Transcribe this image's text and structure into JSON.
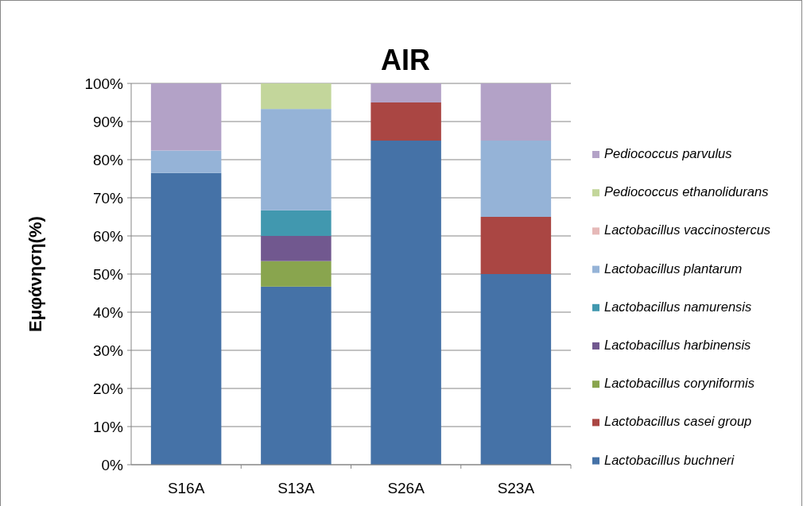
{
  "chart_data": {
    "type": "bar",
    "title": "AIR",
    "ylabel": "Εμφάνηση(%)",
    "stacked": true,
    "categories": [
      "S16A",
      "S13A",
      "S26A",
      "S23A"
    ],
    "series": [
      {
        "name": "Lactobacillus buchneri",
        "color": "#4572a7",
        "values": [
          76.5,
          46.7,
          85,
          50
        ]
      },
      {
        "name": "Lactobacillus casei group",
        "color": "#aa4643",
        "values": [
          0,
          0,
          10,
          15
        ]
      },
      {
        "name": "Lactobacillus coryniformis",
        "color": "#89a54e",
        "values": [
          0,
          6.7,
          0,
          0
        ]
      },
      {
        "name": "Lactobacillus harbinensis",
        "color": "#71588f",
        "values": [
          0,
          6.6,
          0,
          0
        ]
      },
      {
        "name": "Lactobacillus namurensis",
        "color": "#4198af",
        "values": [
          0,
          6.7,
          0,
          0
        ]
      },
      {
        "name": "Lactobacillus plantarum",
        "color": "#95b3d7",
        "values": [
          5.9,
          26.6,
          0,
          20
        ]
      },
      {
        "name": "Lactobacillus vaccinostercus",
        "color": "#e6b9b8",
        "values": [
          0,
          0,
          0,
          0
        ]
      },
      {
        "name": "Pediococcus ethanolidurans",
        "color": "#c3d69b",
        "values": [
          0,
          6.7,
          0,
          0
        ]
      },
      {
        "name": "Pediococcus parvulus",
        "color": "#b3a2c7",
        "values": [
          17.6,
          0,
          5,
          15
        ]
      }
    ],
    "ylim": [
      0,
      100
    ],
    "yticks": [
      {
        "value": 0,
        "label": "0%"
      },
      {
        "value": 10,
        "label": "10%"
      },
      {
        "value": 20,
        "label": "20%"
      },
      {
        "value": 30,
        "label": "30%"
      },
      {
        "value": 40,
        "label": "40%"
      },
      {
        "value": 50,
        "label": "50%"
      },
      {
        "value": 60,
        "label": "60%"
      },
      {
        "value": 70,
        "label": "70%"
      },
      {
        "value": 80,
        "label": "80%"
      },
      {
        "value": 90,
        "label": "90%"
      },
      {
        "value": 100,
        "label": "100%"
      }
    ],
    "grid": "y",
    "legend": "right"
  }
}
